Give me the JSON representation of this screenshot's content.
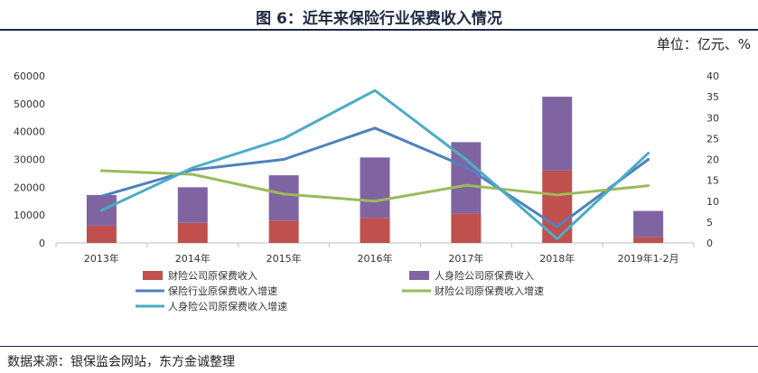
{
  "header": {
    "title": "图 6：近年来保险行业保费收入情况",
    "unit": "单位：亿元、%"
  },
  "footer": {
    "source": "数据来源：银保监会网站，东方金诚整理"
  },
  "colors": {
    "property_bar": "#c0504d",
    "life_bar": "#8064a2",
    "industry_line": "#4f81bd",
    "property_line": "#9bbb59",
    "life_line": "#4bacc6",
    "axis": "#bfbfbf"
  },
  "chart_data": {
    "type": "bar",
    "title": "图 6：近年来保险行业保费收入情况",
    "categories": [
      "2013年",
      "2014年",
      "2015年",
      "2016年",
      "2017年",
      "2018年",
      "2019年1-2月"
    ],
    "y_left": {
      "ylim": [
        0,
        60000
      ],
      "ticks": [
        "0",
        "10000",
        "20000",
        "30000",
        "40000",
        "50000",
        "60000"
      ]
    },
    "y_right": {
      "ylim": [
        0,
        40
      ],
      "ticks": [
        "0",
        "5",
        "10",
        "15",
        "20",
        "25",
        "30",
        "35",
        "40"
      ]
    },
    "bars_stacked": true,
    "series": [
      {
        "name": "财险公司原保费收入",
        "type": "bar",
        "axis": "left",
        "values": [
          6200,
          7200,
          8000,
          9000,
          10500,
          26000,
          2000
        ]
      },
      {
        "name": "人身险公司原保费收入",
        "type": "bar",
        "axis": "left",
        "values": [
          11000,
          12800,
          16300,
          21700,
          25700,
          26500,
          9500
        ]
      },
      {
        "name": "保险行业原保费收入增速",
        "type": "line",
        "axis": "right",
        "values": [
          11.2,
          17.5,
          20.0,
          27.5,
          18.2,
          3.9,
          20.0
        ]
      },
      {
        "name": "财险公司原保费收入增速",
        "type": "line",
        "axis": "right",
        "values": [
          17.3,
          16.4,
          11.7,
          10.0,
          13.8,
          11.5,
          13.7
        ]
      },
      {
        "name": "人身险公司原保费收入增速",
        "type": "line",
        "axis": "right",
        "values": [
          7.8,
          18.0,
          25.0,
          36.5,
          20.0,
          1.0,
          21.5
        ]
      }
    ],
    "legend": [
      "财险公司原保费收入",
      "人身险公司原保费收入",
      "保险行业原保费收入增速",
      "财险公司原保费收入增速",
      "人身险公司原保费收入增速"
    ]
  }
}
